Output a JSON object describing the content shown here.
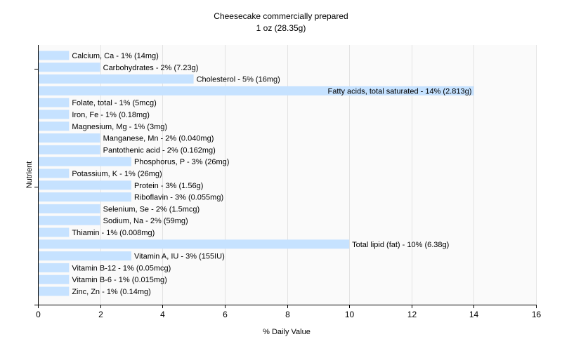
{
  "chart_data": {
    "type": "bar",
    "orientation": "horizontal",
    "title": "Cheesecake commercially prepared",
    "subtitle": "1 oz (28.35g)",
    "xlabel": "% Daily Value",
    "ylabel": "Nutrient",
    "xlim": [
      0,
      16
    ],
    "xticks": [
      0,
      2,
      4,
      6,
      8,
      10,
      12,
      14,
      16
    ],
    "grid": true,
    "bar_color": "#c6e2ff",
    "categories": [
      "Calcium, Ca",
      "Carbohydrates",
      "Cholesterol",
      "Fatty acids, total saturated",
      "Folate, total",
      "Iron, Fe",
      "Magnesium, Mg",
      "Manganese, Mn",
      "Pantothenic acid",
      "Phosphorus, P",
      "Potassium, K",
      "Protein",
      "Riboflavin",
      "Selenium, Se",
      "Sodium, Na",
      "Thiamin",
      "Total lipid (fat)",
      "Vitamin A, IU",
      "Vitamin B-12",
      "Vitamin B-6",
      "Zinc, Zn"
    ],
    "values": [
      1,
      2,
      5,
      14,
      1,
      1,
      1,
      2,
      2,
      3,
      1,
      3,
      3,
      2,
      2,
      1,
      10,
      3,
      1,
      1,
      1
    ],
    "labels": [
      "Calcium, Ca - 1% (14mg)",
      "Carbohydrates - 2% (7.23g)",
      "Cholesterol - 5% (16mg)",
      "Fatty acids, total saturated - 14% (2.813g)",
      "Folate, total - 1% (5mcg)",
      "Iron, Fe - 1% (0.18mg)",
      "Magnesium, Mg - 1% (3mg)",
      "Manganese, Mn - 2% (0.040mg)",
      "Pantothenic acid - 2% (0.162mg)",
      "Phosphorus, P - 3% (26mg)",
      "Potassium, K - 1% (26mg)",
      "Protein - 3% (1.56g)",
      "Riboflavin - 3% (0.055mg)",
      "Selenium, Se - 2% (1.5mcg)",
      "Sodium, Na - 2% (59mg)",
      "Thiamin - 1% (0.008mg)",
      "Total lipid (fat) - 10% (6.38g)",
      "Vitamin A, IU - 3% (155IU)",
      "Vitamin B-12 - 1% (0.05mcg)",
      "Vitamin B-6 - 1% (0.015mg)",
      "Zinc, Zn - 1% (0.14mg)"
    ]
  }
}
